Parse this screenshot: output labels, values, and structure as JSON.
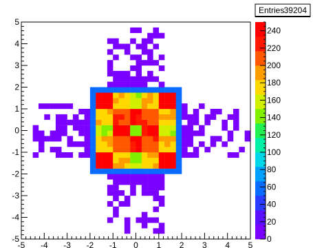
{
  "stats_box": {
    "label": "Entries",
    "value": "39204"
  },
  "colors": {
    "palette": [
      "#7a00ff",
      "#5a10ff",
      "#2a3cff",
      "#0a6cff",
      "#00a0ff",
      "#00d8e8",
      "#00f0a8",
      "#20f050",
      "#80f000",
      "#d0f000",
      "#ffd800",
      "#ff9c00",
      "#ff5800",
      "#ff1800",
      "#ff0000"
    ],
    "frame": "#000000",
    "background": "#ffffff"
  },
  "chart_data": {
    "type": "heatmap",
    "title": "",
    "xlabel": "",
    "ylabel": "",
    "xlim": [
      -5,
      5
    ],
    "ylim": [
      -5,
      5
    ],
    "bins": 40,
    "zlim": [
      0,
      250
    ],
    "x_ticks": [
      -5,
      -4,
      -3,
      -2,
      -1,
      0,
      1,
      2,
      3,
      4,
      5
    ],
    "y_ticks": [
      -5,
      -4,
      -3,
      -2,
      -1,
      0,
      1,
      2,
      3,
      4,
      5
    ],
    "z_ticks": [
      0,
      20,
      40,
      60,
      80,
      100,
      120,
      140,
      160,
      180,
      200,
      220,
      240
    ],
    "entries": 39204,
    "outer_level": 2,
    "rim_level": 60,
    "inner_levels": [
      [
        245,
        180,
        150,
        180,
        245
      ],
      [
        180,
        210,
        240,
        210,
        180
      ],
      [
        150,
        240,
        140,
        240,
        150
      ],
      [
        180,
        210,
        240,
        210,
        180
      ],
      [
        245,
        180,
        150,
        180,
        245
      ]
    ],
    "description_region": {
      "x_range": [
        -2.0,
        2.0
      ],
      "y_range": [
        -2.0,
        2.0
      ],
      "inner_x_range": [
        -1.75,
        1.75
      ],
      "inner_y_range": [
        -1.75,
        1.75
      ]
    }
  }
}
